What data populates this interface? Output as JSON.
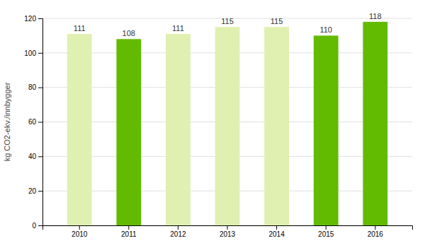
{
  "chart_data": {
    "type": "bar",
    "categories": [
      "2010",
      "2011",
      "2012",
      "2013",
      "2014",
      "2015",
      "2016"
    ],
    "values": [
      111,
      108,
      111,
      115,
      115,
      110,
      118
    ],
    "colors": [
      "#dff0b0",
      "#62bb00",
      "#dff0b0",
      "#dff0b0",
      "#dff0b0",
      "#62bb00",
      "#62bb00"
    ],
    "y_label": "kg CO2-ekv./innbygger",
    "ylim": [
      0,
      120
    ],
    "yticks": [
      0,
      20,
      40,
      60,
      80,
      100,
      120
    ],
    "grid": true,
    "data_labels": true
  }
}
